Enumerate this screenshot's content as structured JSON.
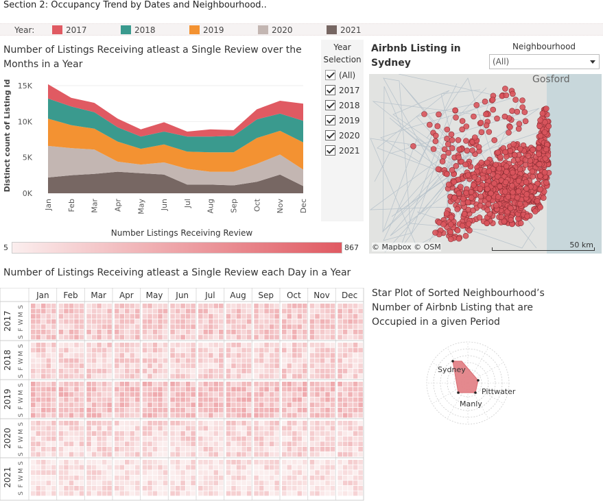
{
  "section_title": "Section 2: Occupancy Trend by Dates and Neighbourhood..",
  "legend": {
    "label": "Year:",
    "items": [
      {
        "label": "2017",
        "color": "#e05a62"
      },
      {
        "label": "2018",
        "color": "#3a9a8e"
      },
      {
        "label": "2019",
        "color": "#f39232"
      },
      {
        "label": "2020",
        "color": "#c3b6b2"
      },
      {
        "label": "2021",
        "color": "#776763"
      }
    ]
  },
  "year_selection": {
    "title": "Year Selection",
    "options": [
      {
        "label": "(All)",
        "checked": false
      },
      {
        "label": "2017",
        "checked": true
      },
      {
        "label": "2018",
        "checked": true
      },
      {
        "label": "2019",
        "checked": true
      },
      {
        "label": "2020",
        "checked": true
      },
      {
        "label": "2021",
        "checked": true
      }
    ]
  },
  "color_legend": {
    "title": "Number Listings Receiving Review",
    "min": "5",
    "max": "867"
  },
  "map": {
    "title": "Airbnb Listing in Sydney",
    "place_label": "Gosford",
    "attribution": "© Mapbox © OSM",
    "scale_label": "50 km",
    "dot_color": "#d9545c"
  },
  "neighbourhood_filter": {
    "label": "Neighbourhood",
    "value": "(All)"
  },
  "calendar": {
    "title": "Number of Listings Receiving atleast a Single Review each Day in a Year",
    "months": [
      "Jan",
      "Feb",
      "Mar",
      "Apr",
      "May",
      "Jun",
      "Jul",
      "Aug",
      "Sep",
      "Oct",
      "Nov",
      "Dec"
    ],
    "years": [
      "2017",
      "2018",
      "2019",
      "2020",
      "2021"
    ],
    "day_letters": [
      "S",
      "M",
      "W",
      "F",
      "S"
    ]
  },
  "star_plot": {
    "title": "Star Plot of Sorted Neighbourhood’s Number of Airbnb Listing that are Occupied in a given Period",
    "labels": [
      "Sydney",
      "Pittwater",
      "Manly"
    ]
  },
  "chart_data": [
    {
      "type": "area",
      "stacked": true,
      "title": "Number of Listings Receiving atleast a Single Review over the Months in a Year",
      "ylabel": "Distinct count of Listing Id",
      "xlabel": "",
      "ylim": [
        0,
        15000
      ],
      "yticks": [
        "0K",
        "5K",
        "10K",
        "15K"
      ],
      "categories": [
        "Jan",
        "Feb",
        "Mar",
        "Apr",
        "May",
        "Jun",
        "Jul",
        "Aug",
        "Sep",
        "Oct",
        "Nov",
        "Dec"
      ],
      "series": [
        {
          "name": "2021",
          "values": [
            2200,
            2500,
            2700,
            3000,
            2800,
            2600,
            1200,
            1200,
            1100,
            1600,
            2600,
            1000
          ]
        },
        {
          "name": "2020",
          "values": [
            4400,
            3800,
            3400,
            1400,
            1200,
            1700,
            2200,
            1800,
            1900,
            2500,
            2800,
            2300
          ]
        },
        {
          "name": "2019",
          "values": [
            3800,
            3200,
            2900,
            2800,
            2200,
            2500,
            2400,
            2700,
            2700,
            3600,
            3300,
            3800
          ]
        },
        {
          "name": "2018",
          "values": [
            2800,
            2600,
            2300,
            2000,
            1700,
            1800,
            2100,
            2200,
            2300,
            2600,
            2400,
            3000
          ]
        },
        {
          "name": "2017",
          "values": [
            2000,
            1200,
            1300,
            1200,
            1000,
            1300,
            700,
            1000,
            800,
            1400,
            1800,
            2400
          ]
        }
      ]
    },
    {
      "type": "heatmap",
      "title": "Number of Listings Receiving atleast a Single Review each Day in a Year",
      "colorbar": {
        "min": 5,
        "max": 867
      },
      "rows": [
        "2017",
        "2018",
        "2019",
        "2020",
        "2021"
      ],
      "columns": [
        "Jan",
        "Feb",
        "Mar",
        "Apr",
        "May",
        "Jun",
        "Jul",
        "Aug",
        "Sep",
        "Oct",
        "Nov",
        "Dec"
      ]
    },
    {
      "type": "radar",
      "title": "Star Plot of Sorted Neighbourhood’s Number of Airbnb Listing that are Occupied in a given Period",
      "labels": [
        "Sydney",
        "Pittwater",
        "Manly"
      ]
    }
  ]
}
